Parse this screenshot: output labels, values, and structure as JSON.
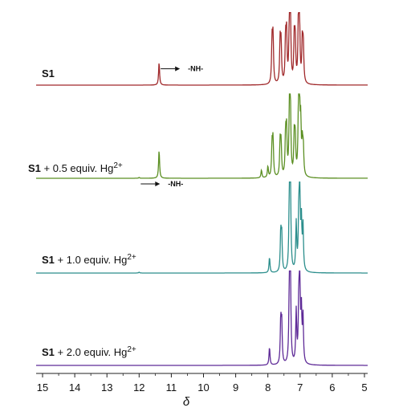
{
  "chart_data": {
    "type": "line",
    "xlabel": "δ",
    "xlim": [
      15.2,
      4.9
    ],
    "x_reversed": true,
    "x_ticks": [
      "15",
      "14",
      "13",
      "12",
      "11",
      "10",
      "9",
      "8",
      "7",
      "6",
      "5"
    ],
    "series": [
      {
        "name": "S1",
        "label_main": "S1",
        "label_rest": "",
        "label_sup": "",
        "color": "#a0282a",
        "annotation": "-NH-",
        "peaks": [
          {
            "x": 11.38,
            "h": 0.33
          },
          {
            "x": 7.87,
            "h": 0.62
          },
          {
            "x": 7.84,
            "h": 0.66
          },
          {
            "x": 7.62,
            "h": 0.6
          },
          {
            "x": 7.59,
            "h": 0.56
          },
          {
            "x": 7.45,
            "h": 0.63
          },
          {
            "x": 7.42,
            "h": 0.68
          },
          {
            "x": 7.33,
            "h": 1.0
          },
          {
            "x": 7.3,
            "h": 0.95
          },
          {
            "x": 7.18,
            "h": 0.65
          },
          {
            "x": 7.15,
            "h": 0.6
          },
          {
            "x": 7.05,
            "h": 0.9
          },
          {
            "x": 7.02,
            "h": 0.98
          },
          {
            "x": 6.93,
            "h": 0.6
          },
          {
            "x": 6.9,
            "h": 0.55
          }
        ]
      },
      {
        "name": "S1 + 0.5 equiv. Hg2+",
        "label_main": "S1",
        "label_rest": " + 0.5 equiv. Hg",
        "label_sup": "2+",
        "color": "#5b8f22",
        "annotation": "-NH-",
        "peaks": [
          {
            "x": 12.0,
            "h": 0.01
          },
          {
            "x": 11.38,
            "h": 0.35
          },
          {
            "x": 8.2,
            "h": 0.1
          },
          {
            "x": 8.0,
            "h": 0.14
          },
          {
            "x": 7.87,
            "h": 0.4
          },
          {
            "x": 7.84,
            "h": 0.45
          },
          {
            "x": 7.62,
            "h": 0.42
          },
          {
            "x": 7.59,
            "h": 0.4
          },
          {
            "x": 7.45,
            "h": 0.5
          },
          {
            "x": 7.42,
            "h": 0.55
          },
          {
            "x": 7.33,
            "h": 0.85
          },
          {
            "x": 7.3,
            "h": 0.82
          },
          {
            "x": 7.18,
            "h": 0.5
          },
          {
            "x": 7.15,
            "h": 0.45
          },
          {
            "x": 7.05,
            "h": 0.7
          },
          {
            "x": 7.02,
            "h": 1.0
          },
          {
            "x": 6.98,
            "h": 0.62
          },
          {
            "x": 6.93,
            "h": 0.38
          },
          {
            "x": 6.9,
            "h": 0.34
          }
        ]
      },
      {
        "name": "S1 + 1.0 equiv. Hg2+",
        "label_main": "S1",
        "label_rest": " + 1.0 equiv. Hg",
        "label_sup": "2+",
        "color": "#2b8e8c",
        "annotation": "",
        "peaks": [
          {
            "x": 12.0,
            "h": 0.01
          },
          {
            "x": 7.95,
            "h": 0.18
          },
          {
            "x": 7.6,
            "h": 0.45
          },
          {
            "x": 7.57,
            "h": 0.4
          },
          {
            "x": 7.33,
            "h": 1.0
          },
          {
            "x": 7.3,
            "h": 0.95
          },
          {
            "x": 7.12,
            "h": 0.55
          },
          {
            "x": 7.04,
            "h": 0.58
          },
          {
            "x": 7.01,
            "h": 1.0
          },
          {
            "x": 6.96,
            "h": 0.55
          },
          {
            "x": 6.91,
            "h": 0.52
          }
        ]
      },
      {
        "name": "S1 + 2.0 equiv. Hg2+",
        "label_main": "S1",
        "label_rest": " + 2.0 equiv. Hg",
        "label_sup": "2+",
        "color": "#5e2a97",
        "annotation": "",
        "peaks": [
          {
            "x": 7.95,
            "h": 0.2
          },
          {
            "x": 7.6,
            "h": 0.48
          },
          {
            "x": 7.57,
            "h": 0.43
          },
          {
            "x": 7.33,
            "h": 1.0
          },
          {
            "x": 7.3,
            "h": 0.95
          },
          {
            "x": 7.12,
            "h": 0.58
          },
          {
            "x": 7.04,
            "h": 0.6
          },
          {
            "x": 7.01,
            "h": 1.0
          },
          {
            "x": 6.96,
            "h": 0.56
          },
          {
            "x": 6.91,
            "h": 0.52
          }
        ]
      }
    ]
  }
}
